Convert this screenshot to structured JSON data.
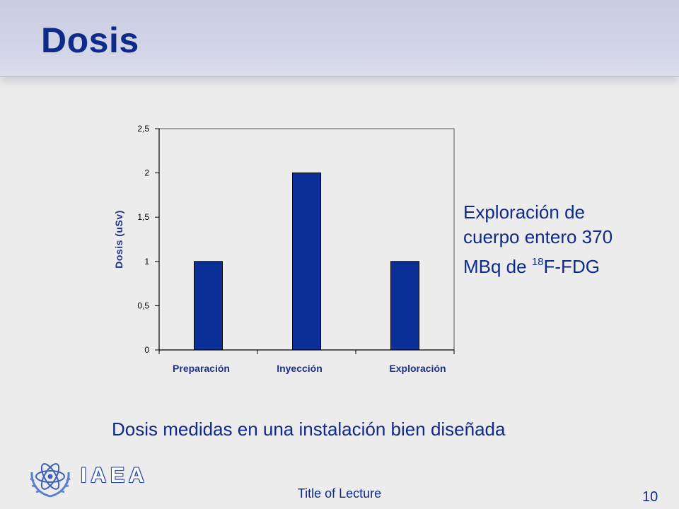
{
  "slide": {
    "title": "Dosis",
    "side_note_line1": "Exploración de",
    "side_note_line2": "cuerpo entero 370",
    "side_note_line3_pre": "MBq de ",
    "side_note_sup": "18",
    "side_note_line3_post": "F-FDG",
    "caption": "Dosis medidas en una instalación bien diseñada"
  },
  "footer": {
    "org": "IAEA",
    "lecture": "Title of Lecture",
    "page": "10"
  },
  "colors": {
    "bar": "#0a2f96",
    "title": "#0e2a8a"
  },
  "chart_data": {
    "type": "bar",
    "categories": [
      "Preparación",
      "Inyección",
      "Exploración"
    ],
    "values": [
      1.0,
      2.0,
      1.0
    ],
    "ylabel": "Dosis (uSv)",
    "xlabel": "",
    "ylim": [
      0,
      2.5
    ],
    "yticks": [
      0,
      0.5,
      1,
      1.5,
      2,
      2.5
    ],
    "ytick_labels": [
      "0",
      "0,5",
      "1",
      "1,5",
      "2",
      "2,5"
    ],
    "grid": false,
    "legend": "none"
  }
}
